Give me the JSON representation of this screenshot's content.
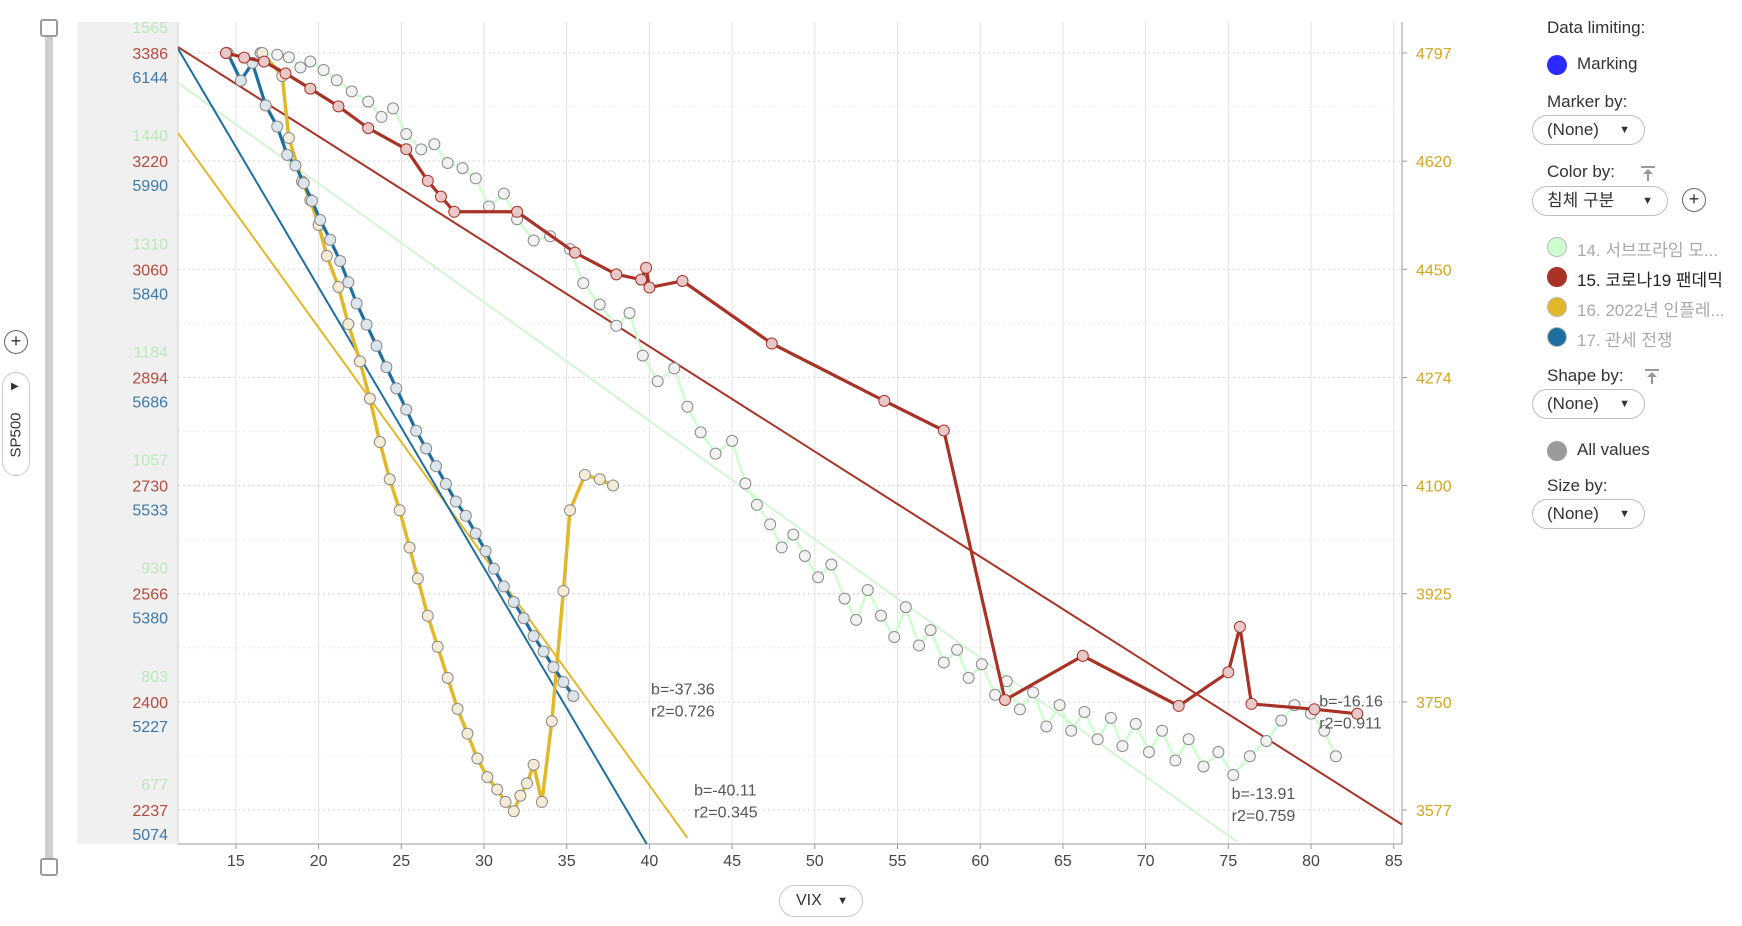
{
  "colors": {
    "subprime": "#ccffcc",
    "covid": "#a83225",
    "inflation": "#e0b82a",
    "tariff": "#1e6f9f",
    "marking": "#2b2bff",
    "all_values": "#9a9a9a",
    "tick_green": "#bde8bd",
    "tick_red": "#b34a3d",
    "tick_blue": "#3d78a8",
    "tick_gold": "#d4a51f"
  },
  "y_axis_control": {
    "label": "SP500",
    "add": "+"
  },
  "x_axis_control": {
    "label": "VIX"
  },
  "legend": {
    "data_limiting_title": "Data limiting:",
    "marking_label": "Marking",
    "marker_by_title": "Marker by:",
    "marker_by_value": "(None)",
    "color_by_title": "Color by:",
    "color_by_value": "침체 구분",
    "add_button": "+",
    "series": [
      {
        "label": "14. 서브프라임 모...",
        "color": "#ccffcc",
        "dimmed": true
      },
      {
        "label": "15. 코로나19 팬데믹",
        "color": "#a83225",
        "dimmed": false
      },
      {
        "label": "16. 2022년 인플레...",
        "color": "#e0b82a",
        "dimmed": true
      },
      {
        "label": "17. 관세 전쟁",
        "color": "#1e6f9f",
        "dimmed": true
      }
    ],
    "shape_by_title": "Shape by:",
    "shape_by_value": "(None)",
    "all_values_label": "All values",
    "size_by_title": "Size by:",
    "size_by_value": "(None)"
  },
  "chart_data": {
    "type": "scatter",
    "xlabel": "VIX",
    "ylabel": "SP500",
    "xlim": [
      11.5,
      85.5
    ],
    "x_ticks": [
      15,
      20,
      25,
      30,
      35,
      40,
      45,
      50,
      55,
      60,
      65,
      70,
      75,
      80,
      85
    ],
    "grid": true,
    "legend_position": "right",
    "y_axes": [
      {
        "series": "14. 서브프라임 모...",
        "ticks": [
          1565,
          1440,
          1310,
          1184,
          1057,
          930,
          803,
          677
        ]
      },
      {
        "series": "15. 코로나19 팬데믹",
        "ticks": [
          3386,
          3220,
          3060,
          2894,
          2730,
          2566,
          2400,
          2237
        ]
      },
      {
        "series": "17. 관세 전쟁",
        "ticks": [
          6144,
          5990,
          5840,
          5686,
          5533,
          5380,
          5227,
          5074
        ]
      },
      {
        "series": "16. 2022년 인플레...",
        "side": "right",
        "ticks": [
          4797,
          4620,
          4450,
          4274,
          4100,
          3925,
          3750,
          3577
        ]
      }
    ],
    "annotations": [
      {
        "series": "17. 관세 전쟁",
        "lines": [
          "b=-37.36",
          "r2=0.726"
        ],
        "x": 40.1,
        "y": 5237
      },
      {
        "series": "16. 2022년 인플레...",
        "lines": [
          "b=-40.11",
          "r2=0.345"
        ],
        "x": 42.7,
        "y": 3600
      },
      {
        "series": "14. 서브프라임 모...",
        "lines": [
          "b=-13.91",
          "r2=0.759"
        ],
        "x": 75.2,
        "y": 690
      },
      {
        "series": "15. 코로나19 팬데믹",
        "lines": [
          "b=-16.16",
          "r2=0.911"
        ],
        "x": 80.5,
        "y": 2394
      }
    ],
    "series": [
      {
        "name": "14. 서브프라임 모...",
        "axis": 0,
        "trend": {
          "x0": 11.5,
          "y0": 1530,
          "x1": 75.5,
          "y1": 640
        },
        "points": [
          [
            16.5,
            1565
          ],
          [
            17.5,
            1563
          ],
          [
            18.2,
            1560
          ],
          [
            18.9,
            1548
          ],
          [
            19.5,
            1555
          ],
          [
            20.3,
            1545
          ],
          [
            21.1,
            1533
          ],
          [
            22.0,
            1520
          ],
          [
            23.0,
            1508
          ],
          [
            23.8,
            1490
          ],
          [
            24.5,
            1500
          ],
          [
            25.3,
            1470
          ],
          [
            26.2,
            1452
          ],
          [
            27.0,
            1458
          ],
          [
            27.8,
            1436
          ],
          [
            28.7,
            1430
          ],
          [
            29.5,
            1418
          ],
          [
            30.3,
            1385
          ],
          [
            31.2,
            1400
          ],
          [
            32.0,
            1370
          ],
          [
            33.0,
            1345
          ],
          [
            34.0,
            1350
          ],
          [
            35.2,
            1335
          ],
          [
            36.0,
            1295
          ],
          [
            37.0,
            1270
          ],
          [
            38.0,
            1245
          ],
          [
            38.8,
            1260
          ],
          [
            39.6,
            1210
          ],
          [
            40.5,
            1180
          ],
          [
            41.5,
            1195
          ],
          [
            42.3,
            1150
          ],
          [
            43.1,
            1120
          ],
          [
            44.0,
            1095
          ],
          [
            45.0,
            1110
          ],
          [
            45.8,
            1060
          ],
          [
            46.5,
            1035
          ],
          [
            47.3,
            1012
          ],
          [
            48.0,
            985
          ],
          [
            48.7,
            1000
          ],
          [
            49.4,
            975
          ],
          [
            50.2,
            950
          ],
          [
            51.0,
            965
          ],
          [
            51.8,
            925
          ],
          [
            52.5,
            900
          ],
          [
            53.2,
            935
          ],
          [
            54.0,
            905
          ],
          [
            54.8,
            880
          ],
          [
            55.5,
            915
          ],
          [
            56.3,
            870
          ],
          [
            57.0,
            888
          ],
          [
            57.8,
            850
          ],
          [
            58.6,
            865
          ],
          [
            59.3,
            832
          ],
          [
            60.1,
            848
          ],
          [
            60.9,
            812
          ],
          [
            61.6,
            828
          ],
          [
            62.4,
            795
          ],
          [
            63.2,
            815
          ],
          [
            64.0,
            775
          ],
          [
            64.8,
            800
          ],
          [
            65.5,
            770
          ],
          [
            66.3,
            792
          ],
          [
            67.1,
            760
          ],
          [
            67.9,
            785
          ],
          [
            68.6,
            752
          ],
          [
            69.4,
            778
          ],
          [
            70.2,
            745
          ],
          [
            71.0,
            770
          ],
          [
            71.8,
            735
          ],
          [
            72.6,
            760
          ],
          [
            73.5,
            728
          ],
          [
            74.4,
            745
          ],
          [
            75.3,
            718
          ],
          [
            76.3,
            740
          ],
          [
            77.3,
            758
          ],
          [
            78.2,
            782
          ],
          [
            79.0,
            800
          ],
          [
            80.0,
            790
          ],
          [
            80.8,
            770
          ],
          [
            81.5,
            740
          ]
        ]
      },
      {
        "name": "15. 코로나19 팬데믹",
        "axis": 1,
        "trend": {
          "x0": 11.5,
          "y0": 3395,
          "x1": 85.5,
          "y1": 2215
        },
        "points": [
          [
            14.4,
            3386
          ],
          [
            15.5,
            3379
          ],
          [
            16.7,
            3373
          ],
          [
            18.0,
            3355
          ],
          [
            19.5,
            3332
          ],
          [
            21.2,
            3305
          ],
          [
            23.0,
            3272
          ],
          [
            25.3,
            3240
          ],
          [
            26.6,
            3192
          ],
          [
            27.4,
            3168
          ],
          [
            28.2,
            3145
          ],
          [
            32.0,
            3145
          ],
          [
            35.5,
            3083
          ],
          [
            38.0,
            3050
          ],
          [
            39.5,
            3042
          ],
          [
            39.8,
            3060
          ],
          [
            40.0,
            3030
          ],
          [
            42.0,
            3040
          ],
          [
            47.4,
            2945
          ],
          [
            54.2,
            2858
          ],
          [
            57.8,
            2813
          ],
          [
            61.5,
            2404
          ],
          [
            66.2,
            2471
          ],
          [
            72.0,
            2395
          ],
          [
            75.0,
            2446
          ],
          [
            75.7,
            2515
          ],
          [
            76.4,
            2398
          ],
          [
            80.2,
            2390
          ],
          [
            82.8,
            2383
          ]
        ]
      },
      {
        "name": "16. 2022년 인플레...",
        "axis": 3,
        "trend": {
          "x0": 11.5,
          "y0": 4668,
          "x1": 42.3,
          "y1": 3532
        },
        "points": [
          [
            16.6,
            4797
          ],
          [
            17.8,
            4760
          ],
          [
            18.2,
            4660
          ],
          [
            19.0,
            4590
          ],
          [
            19.5,
            4560
          ],
          [
            20.0,
            4520
          ],
          [
            20.5,
            4470
          ],
          [
            21.2,
            4420
          ],
          [
            21.8,
            4360
          ],
          [
            22.5,
            4300
          ],
          [
            23.1,
            4240
          ],
          [
            23.7,
            4170
          ],
          [
            24.3,
            4110
          ],
          [
            24.9,
            4060
          ],
          [
            25.5,
            4000
          ],
          [
            26.0,
            3950
          ],
          [
            26.6,
            3890
          ],
          [
            27.2,
            3840
          ],
          [
            27.8,
            3790
          ],
          [
            28.4,
            3740
          ],
          [
            29.0,
            3700
          ],
          [
            29.6,
            3660
          ],
          [
            30.2,
            3630
          ],
          [
            30.8,
            3610
          ],
          [
            31.3,
            3590
          ],
          [
            31.8,
            3575
          ],
          [
            32.2,
            3600
          ],
          [
            32.6,
            3620
          ],
          [
            33.0,
            3650
          ],
          [
            33.5,
            3590
          ],
          [
            34.1,
            3720
          ],
          [
            34.8,
            3930
          ],
          [
            35.2,
            4060
          ],
          [
            36.1,
            4117
          ],
          [
            37.0,
            4110
          ],
          [
            37.8,
            4100
          ]
        ]
      },
      {
        "name": "17. 관세 전쟁",
        "axis": 2,
        "trend": {
          "x0": 11.5,
          "y0": 6150,
          "x1": 41.5,
          "y1": 4960
        },
        "points": [
          [
            14.5,
            6144
          ],
          [
            15.3,
            6105
          ],
          [
            16.0,
            6130
          ],
          [
            16.8,
            6070
          ],
          [
            17.5,
            6040
          ],
          [
            18.1,
            6000
          ],
          [
            18.6,
            5985
          ],
          [
            19.1,
            5960
          ],
          [
            19.6,
            5935
          ],
          [
            20.1,
            5908
          ],
          [
            20.7,
            5880
          ],
          [
            21.3,
            5850
          ],
          [
            21.8,
            5820
          ],
          [
            22.3,
            5790
          ],
          [
            22.9,
            5760
          ],
          [
            23.5,
            5730
          ],
          [
            24.1,
            5700
          ],
          [
            24.7,
            5670
          ],
          [
            25.3,
            5640
          ],
          [
            25.9,
            5610
          ],
          [
            26.5,
            5585
          ],
          [
            27.1,
            5560
          ],
          [
            27.7,
            5535
          ],
          [
            28.3,
            5510
          ],
          [
            28.9,
            5490
          ],
          [
            29.5,
            5465
          ],
          [
            30.1,
            5440
          ],
          [
            30.6,
            5415
          ],
          [
            31.2,
            5390
          ],
          [
            31.8,
            5368
          ],
          [
            32.4,
            5345
          ],
          [
            33.0,
            5320
          ],
          [
            33.6,
            5298
          ],
          [
            34.2,
            5276
          ],
          [
            34.8,
            5255
          ],
          [
            35.4,
            5235
          ]
        ]
      }
    ]
  }
}
